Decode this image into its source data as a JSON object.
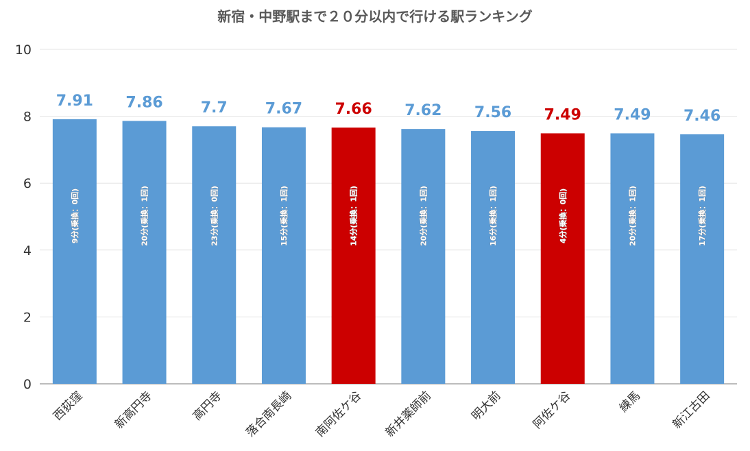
{
  "chart_data": {
    "type": "bar",
    "title": "新宿・中野駅まで２０分以内で行ける駅ランキング",
    "categories": [
      "西荻窪",
      "新高円寺",
      "高円寺",
      "落合南長崎",
      "南阿佐ケ谷",
      "新井薬師前",
      "明大前",
      "阿佐ケ谷",
      "練馬",
      "新江古田"
    ],
    "values": [
      7.91,
      7.86,
      7.7,
      7.67,
      7.66,
      7.62,
      7.56,
      7.49,
      7.49,
      7.46
    ],
    "data_labels": [
      "7.91",
      "7.86",
      "7.7",
      "7.67",
      "7.66",
      "7.62",
      "7.56",
      "7.49",
      "7.49",
      "7.46"
    ],
    "inner_labels": [
      "9分(乗換：0回)",
      "20分(乗換：1回)",
      "23分(乗換：0回)",
      "15分(乗換：1回)",
      "14分(乗換：1回)",
      "20分(乗換：1回)",
      "16分(乗換：1回)",
      "4分(乗換：0回)",
      "20分(乗換：1回)",
      "17分(乗換：1回)"
    ],
    "highlight": [
      false,
      false,
      false,
      false,
      true,
      false,
      false,
      true,
      false,
      false
    ],
    "ylim": [
      0,
      10
    ],
    "yticks": [
      "0",
      "2",
      "4",
      "6",
      "8",
      "10"
    ],
    "grid": true,
    "colors": {
      "normal": "#5B9BD5",
      "highlight": "#CC0000",
      "label_normal": "#5B9BD5",
      "label_highlight": "#CC0000"
    }
  }
}
